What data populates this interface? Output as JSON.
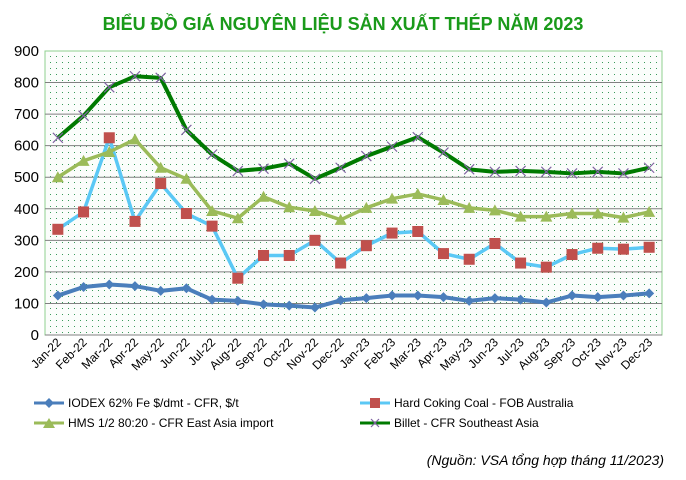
{
  "chart_data": {
    "type": "line",
    "title": "BIỂU ĐỒ GIÁ NGUYÊN LIỆU SẢN XUẤT THÉP NĂM 2023",
    "xlabel": "",
    "ylabel": "",
    "ylim": [
      0,
      900
    ],
    "yticks": [
      "0",
      "100",
      "200",
      "300",
      "400",
      "500",
      "600",
      "700",
      "800",
      "900"
    ],
    "grid": true,
    "legend_position": "bottom",
    "categories": [
      "Jan-22",
      "Feb-22",
      "Mar-22",
      "Apr-22",
      "May-22",
      "Jun-22",
      "Jul-22",
      "Aug-22",
      "Sep-22",
      "Oct-22",
      "Nov-22",
      "Dec-22",
      "Jan-23",
      "Feb-23",
      "Mar-23",
      "Apr-23",
      "May-23",
      "Jun-23",
      "Jul-23",
      "Aug-23",
      "Sep-23",
      "Oct-23",
      "Nov-23",
      "Dec-23"
    ],
    "series": [
      {
        "name": "IODEX 62% Fe $/dmt - CFR, $/t",
        "color": "#4a7ebb",
        "marker": "diamond",
        "values": [
          125,
          152,
          160,
          155,
          140,
          148,
          112,
          108,
          97,
          93,
          87,
          110,
          117,
          125,
          125,
          120,
          108,
          117,
          112,
          103,
          125,
          120,
          125,
          132
        ]
      },
      {
        "name": "Hard Coking Coal - FOB Australia",
        "color": "#5bc8f5",
        "marker": "square",
        "marker_color": "#c0504d",
        "values": [
          335,
          390,
          625,
          360,
          480,
          385,
          345,
          180,
          252,
          252,
          300,
          228,
          283,
          323,
          328,
          258,
          240,
          290,
          228,
          215,
          255,
          275,
          272,
          278
        ]
      },
      {
        "name": "HMS 1/2 80:20 - CFR East Asia import",
        "color": "#9bbb59",
        "marker": "triangle",
        "values": [
          500,
          552,
          580,
          620,
          530,
          495,
          393,
          370,
          438,
          405,
          393,
          365,
          403,
          432,
          447,
          428,
          403,
          395,
          375,
          375,
          385,
          385,
          372,
          390
        ]
      },
      {
        "name": "Billet - CFR Southeast Asia",
        "color": "#007a00",
        "marker": "x",
        "marker_color": "#8064a2",
        "values": [
          625,
          695,
          785,
          820,
          815,
          650,
          572,
          520,
          527,
          543,
          495,
          530,
          567,
          597,
          627,
          578,
          525,
          517,
          520,
          517,
          512,
          517,
          512,
          530
        ]
      }
    ]
  },
  "source_note": "(Nguồn: VSA tổng hợp tháng 11/2023)"
}
